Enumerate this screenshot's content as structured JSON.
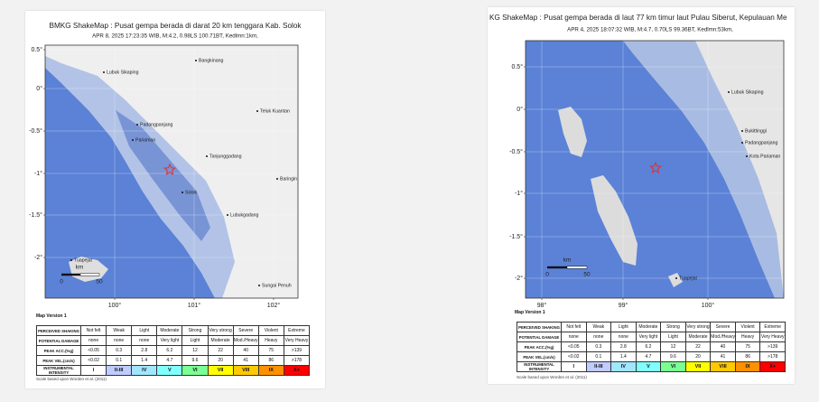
{
  "panels": [
    {
      "title": "BMKG ShakeMap : Pusat gempa berada di darat 20 km tenggara Kab. Solok",
      "subtitle": "APR 8, 2025 17:23:35 WIB, M:4.2, 0.98LS 100.71BT, Kedlmn:1km,",
      "lat_labels": [
        "0.5°",
        "0°",
        "-0.5°",
        "-1°",
        "-1.5°",
        "-2°"
      ],
      "lon_labels": [
        "100°",
        "101°",
        "102°"
      ],
      "places": [
        "Lubuk Sikaping",
        "Bangkinang",
        "Teluk Kuantan",
        "Padangpanjang",
        "Pariaman",
        "Tanjunggadang",
        "Baringin",
        "Solok",
        "Lubukgadang",
        "Sungai Penuh",
        "Tuapejat"
      ],
      "scale": {
        "unit": "km",
        "ticks": [
          "0",
          "50"
        ]
      },
      "map_version": "Map Version 1",
      "legend": {
        "rows": [
          {
            "header": "PERCEIVED SHAKING",
            "cells": [
              "Not felt",
              "Weak",
              "Light",
              "Moderate",
              "Strong",
              "Very strong",
              "Severe",
              "Violent",
              "Extreme"
            ]
          },
          {
            "header": "POTENTIAL DAMAGE",
            "cells": [
              "none",
              "none",
              "none",
              "Very light",
              "Light",
              "Moderate",
              "Mod./Heavy",
              "Heavy",
              "Very Heavy"
            ]
          },
          {
            "header": "PEAK ACC.(%g)",
            "cells": [
              "<0.05",
              "0.3",
              "2.8",
              "6.2",
              "12",
              "22",
              "40",
              "75",
              ">139"
            ]
          },
          {
            "header": "PEAK VEL.(cm/s)",
            "cells": [
              "<0.02",
              "0.1",
              "1.4",
              "4.7",
              "9.6",
              "20",
              "41",
              "86",
              ">178"
            ]
          },
          {
            "header": "INSTRUMENTAL INTENSITY",
            "cells": [
              "I",
              "II-III",
              "IV",
              "V",
              "VI",
              "VII",
              "VIII",
              "IX",
              "X+"
            ]
          }
        ],
        "colors": [
          "#ffffff",
          "#bfccff",
          "#a0e6ff",
          "#80ffff",
          "#7aff93",
          "#ffff00",
          "#ffc800",
          "#ff9100",
          "#ff0000"
        ]
      },
      "footnote": "Scale based upon Worden et al. (2011)"
    },
    {
      "title": "KG ShakeMap : Pusat gempa berada di laut 77 km timur laut Pulau Siberut, Kepulauan Me",
      "subtitle": "APR 4, 2025 18:07:32 WIB, M:4.7, 0.70LS 99.36BT, Kedlmn:53km,",
      "lat_labels": [
        "0.5°",
        "0°",
        "-0.5°",
        "-1°",
        "-1.5°",
        "-2°"
      ],
      "lon_labels": [
        "98°",
        "99°",
        "100°"
      ],
      "places": [
        "Lubuk Sikaping",
        "Bukittinggi",
        "Padangpanjang",
        "Kota Pariaman",
        "Tuapejat"
      ],
      "scale": {
        "unit": "km",
        "ticks": [
          "0",
          "50"
        ]
      },
      "map_version": "Map Version 1",
      "legend": {
        "rows": [
          {
            "header": "PERCEIVED SHAKING",
            "cells": [
              "Not felt",
              "Weak",
              "Light",
              "Moderate",
              "Strong",
              "Very strong",
              "Severe",
              "Violent",
              "Extreme"
            ]
          },
          {
            "header": "POTENTIAL DAMAGE",
            "cells": [
              "none",
              "none",
              "none",
              "Very light",
              "Light",
              "Moderate",
              "Mod./Heavy",
              "Heavy",
              "Very Heavy"
            ]
          },
          {
            "header": "PEAK ACC.(%g)",
            "cells": [
              "<0.05",
              "0.3",
              "2.8",
              "6.2",
              "12",
              "22",
              "40",
              "75",
              ">139"
            ]
          },
          {
            "header": "PEAK VEL.(cm/s)",
            "cells": [
              "<0.02",
              "0.1",
              "1.4",
              "4.7",
              "9.6",
              "20",
              "41",
              "86",
              ">178"
            ]
          },
          {
            "header": "INSTRUMENTAL INTENSITY",
            "cells": [
              "I",
              "II-III",
              "IV",
              "V",
              "VI",
              "VII",
              "VIII",
              "IX",
              "X+"
            ]
          }
        ],
        "colors": [
          "#ffffff",
          "#bfccff",
          "#a0e6ff",
          "#80ffff",
          "#7aff93",
          "#ffff00",
          "#ffc800",
          "#ff9100",
          "#ff0000"
        ]
      },
      "footnote": "Scale based upon Worden et al. (2011)"
    }
  ]
}
